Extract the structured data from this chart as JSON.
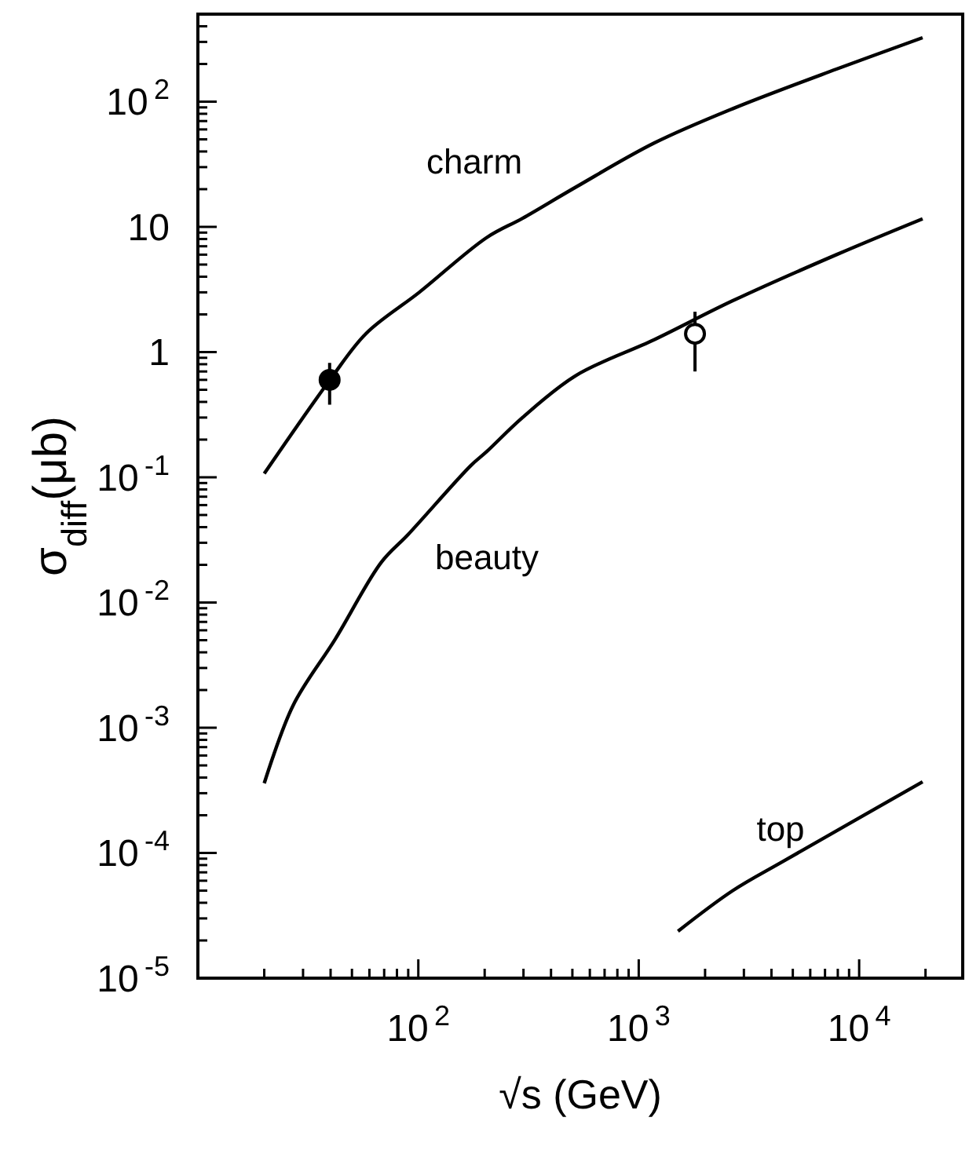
{
  "chart_data": {
    "type": "line",
    "log": "xy",
    "xlabel": "√s (GeV)",
    "ylabel": "σ$_{diff}$(μb)",
    "xlim": [
      10,
      29500
    ],
    "ylim": [
      1e-05,
      500
    ],
    "xticks": [
      {
        "value": 20,
        "label": null
      },
      {
        "value": 30,
        "label": null
      },
      {
        "value": 40,
        "label": null
      },
      {
        "value": 50,
        "label": null
      },
      {
        "value": 60,
        "label": null
      },
      {
        "value": 70,
        "label": null
      },
      {
        "value": 80,
        "label": null
      },
      {
        "value": 90,
        "label": null
      },
      {
        "value": 100,
        "label": "10$^{2}$"
      },
      {
        "value": 200,
        "label": null
      },
      {
        "value": 300,
        "label": null
      },
      {
        "value": 400,
        "label": null
      },
      {
        "value": 500,
        "label": null
      },
      {
        "value": 600,
        "label": null
      },
      {
        "value": 700,
        "label": null
      },
      {
        "value": 800,
        "label": null
      },
      {
        "value": 900,
        "label": null
      },
      {
        "value": 1000,
        "label": "10$^{3}$"
      },
      {
        "value": 2000,
        "label": null
      },
      {
        "value": 3000,
        "label": null
      },
      {
        "value": 4000,
        "label": null
      },
      {
        "value": 5000,
        "label": null
      },
      {
        "value": 6000,
        "label": null
      },
      {
        "value": 7000,
        "label": null
      },
      {
        "value": 8000,
        "label": null
      },
      {
        "value": 9000,
        "label": null
      },
      {
        "value": 10000,
        "label": "10$^{4}$"
      },
      {
        "value": 20000,
        "label": null
      }
    ],
    "yticks": [
      {
        "value": 1e-05,
        "label": "10$^{-5}$"
      },
      {
        "value": 2e-05,
        "label": null
      },
      {
        "value": 3e-05,
        "label": null
      },
      {
        "value": 4e-05,
        "label": null
      },
      {
        "value": 5e-05,
        "label": null
      },
      {
        "value": 6e-05,
        "label": null
      },
      {
        "value": 7e-05,
        "label": null
      },
      {
        "value": 8e-05,
        "label": null
      },
      {
        "value": 9e-05,
        "label": null
      },
      {
        "value": 0.0001,
        "label": "10$^{-4}$"
      },
      {
        "value": 0.0002,
        "label": null
      },
      {
        "value": 0.0003,
        "label": null
      },
      {
        "value": 0.0004,
        "label": null
      },
      {
        "value": 0.0005,
        "label": null
      },
      {
        "value": 0.0006,
        "label": null
      },
      {
        "value": 0.0007,
        "label": null
      },
      {
        "value": 0.0008,
        "label": null
      },
      {
        "value": 0.0009,
        "label": null
      },
      {
        "value": 0.001,
        "label": "10$^{-3}$"
      },
      {
        "value": 0.002,
        "label": null
      },
      {
        "value": 0.003,
        "label": null
      },
      {
        "value": 0.004,
        "label": null
      },
      {
        "value": 0.005,
        "label": null
      },
      {
        "value": 0.006,
        "label": null
      },
      {
        "value": 0.007,
        "label": null
      },
      {
        "value": 0.008,
        "label": null
      },
      {
        "value": 0.009,
        "label": null
      },
      {
        "value": 0.01,
        "label": "10$^{-2}$"
      },
      {
        "value": 0.02,
        "label": null
      },
      {
        "value": 0.03,
        "label": null
      },
      {
        "value": 0.04,
        "label": null
      },
      {
        "value": 0.05,
        "label": null
      },
      {
        "value": 0.06,
        "label": null
      },
      {
        "value": 0.07,
        "label": null
      },
      {
        "value": 0.08,
        "label": null
      },
      {
        "value": 0.09,
        "label": null
      },
      {
        "value": 0.1,
        "label": "10$^{-1}$"
      },
      {
        "value": 0.2,
        "label": null
      },
      {
        "value": 0.3,
        "label": null
      },
      {
        "value": 0.4,
        "label": null
      },
      {
        "value": 0.5,
        "label": null
      },
      {
        "value": 0.6,
        "label": null
      },
      {
        "value": 0.7,
        "label": null
      },
      {
        "value": 0.8,
        "label": null
      },
      {
        "value": 0.9,
        "label": null
      },
      1,
      {
        "value": 2,
        "label": null
      },
      {
        "value": 3,
        "label": null
      },
      {
        "value": 4,
        "label": null
      },
      {
        "value": 5,
        "label": null
      },
      {
        "value": 6,
        "label": null
      },
      {
        "value": 7,
        "label": null
      },
      {
        "value": 8,
        "label": null
      },
      {
        "value": 9,
        "label": null
      },
      10,
      {
        "value": 20,
        "label": null
      },
      {
        "value": 30,
        "label": null
      },
      {
        "value": 40,
        "label": null
      },
      {
        "value": 50,
        "label": null
      },
      {
        "value": 60,
        "label": null
      },
      {
        "value": 70,
        "label": null
      },
      {
        "value": 80,
        "label": null
      },
      {
        "value": 90,
        "label": null
      },
      {
        "value": 100,
        "label": "10$^{2}$"
      },
      {
        "value": 200,
        "label": null
      },
      {
        "value": 300,
        "label": null
      },
      {
        "value": 400,
        "label": null
      }
    ],
    "series": [
      {
        "color": "#000000",
        "x": [
          20,
          40,
          58,
          101,
          204,
          297,
          519,
          1178,
          2674,
          7890,
          19400
        ],
        "values": [
          0.107,
          0.61,
          1.41,
          3.0,
          8.2,
          11.7,
          20.8,
          46.8,
          88,
          182,
          324
        ]
      },
      {
        "color": "#000000",
        "x": [
          20,
          27,
          42,
          68,
          90,
          173,
          204,
          297,
          519,
          1180,
          2670,
          7890,
          19400
        ],
        "values": [
          0.00036,
          0.0015,
          0.0051,
          0.021,
          0.035,
          0.124,
          0.16,
          0.3,
          0.65,
          1.26,
          2.57,
          6,
          11.6
        ]
      },
      {
        "color": "#000000",
        "x": [
          1507,
          2670,
          4590,
          19400
        ],
        "values": [
          2.37e-05,
          5e-05,
          8.7e-05,
          0.00037
        ]
      },
      {
        "type": "scatter",
        "marker": "circle",
        "color": "#000000",
        "x": [
          39.6
        ],
        "values": [
          0.6
        ],
        "errors": [
          [
            0.38,
            0.82
          ]
        ]
      },
      {
        "type": "scatter",
        "marker": "circle",
        "color": "#ffffff",
        "x": [
          1800
        ],
        "values": [
          1.4
        ],
        "errors": [
          [
            0.7,
            2.1
          ]
        ]
      }
    ],
    "annotations": [
      "charm",
      "beauty",
      "top"
    ]
  }
}
